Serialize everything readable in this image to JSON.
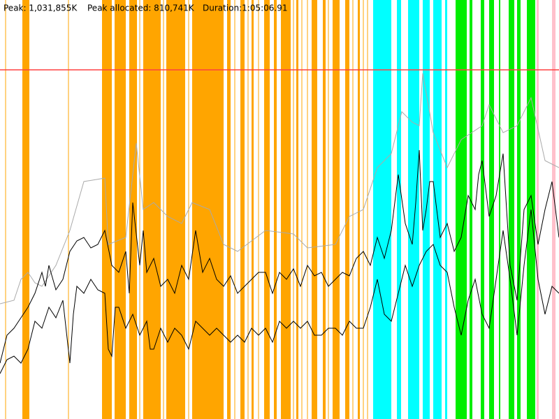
{
  "header": {
    "peak": "Peak: 1,031,855K",
    "peak_allocated": "Peak allocated: 810,741K",
    "duration": "Duration:1:05:06.91"
  }
}
